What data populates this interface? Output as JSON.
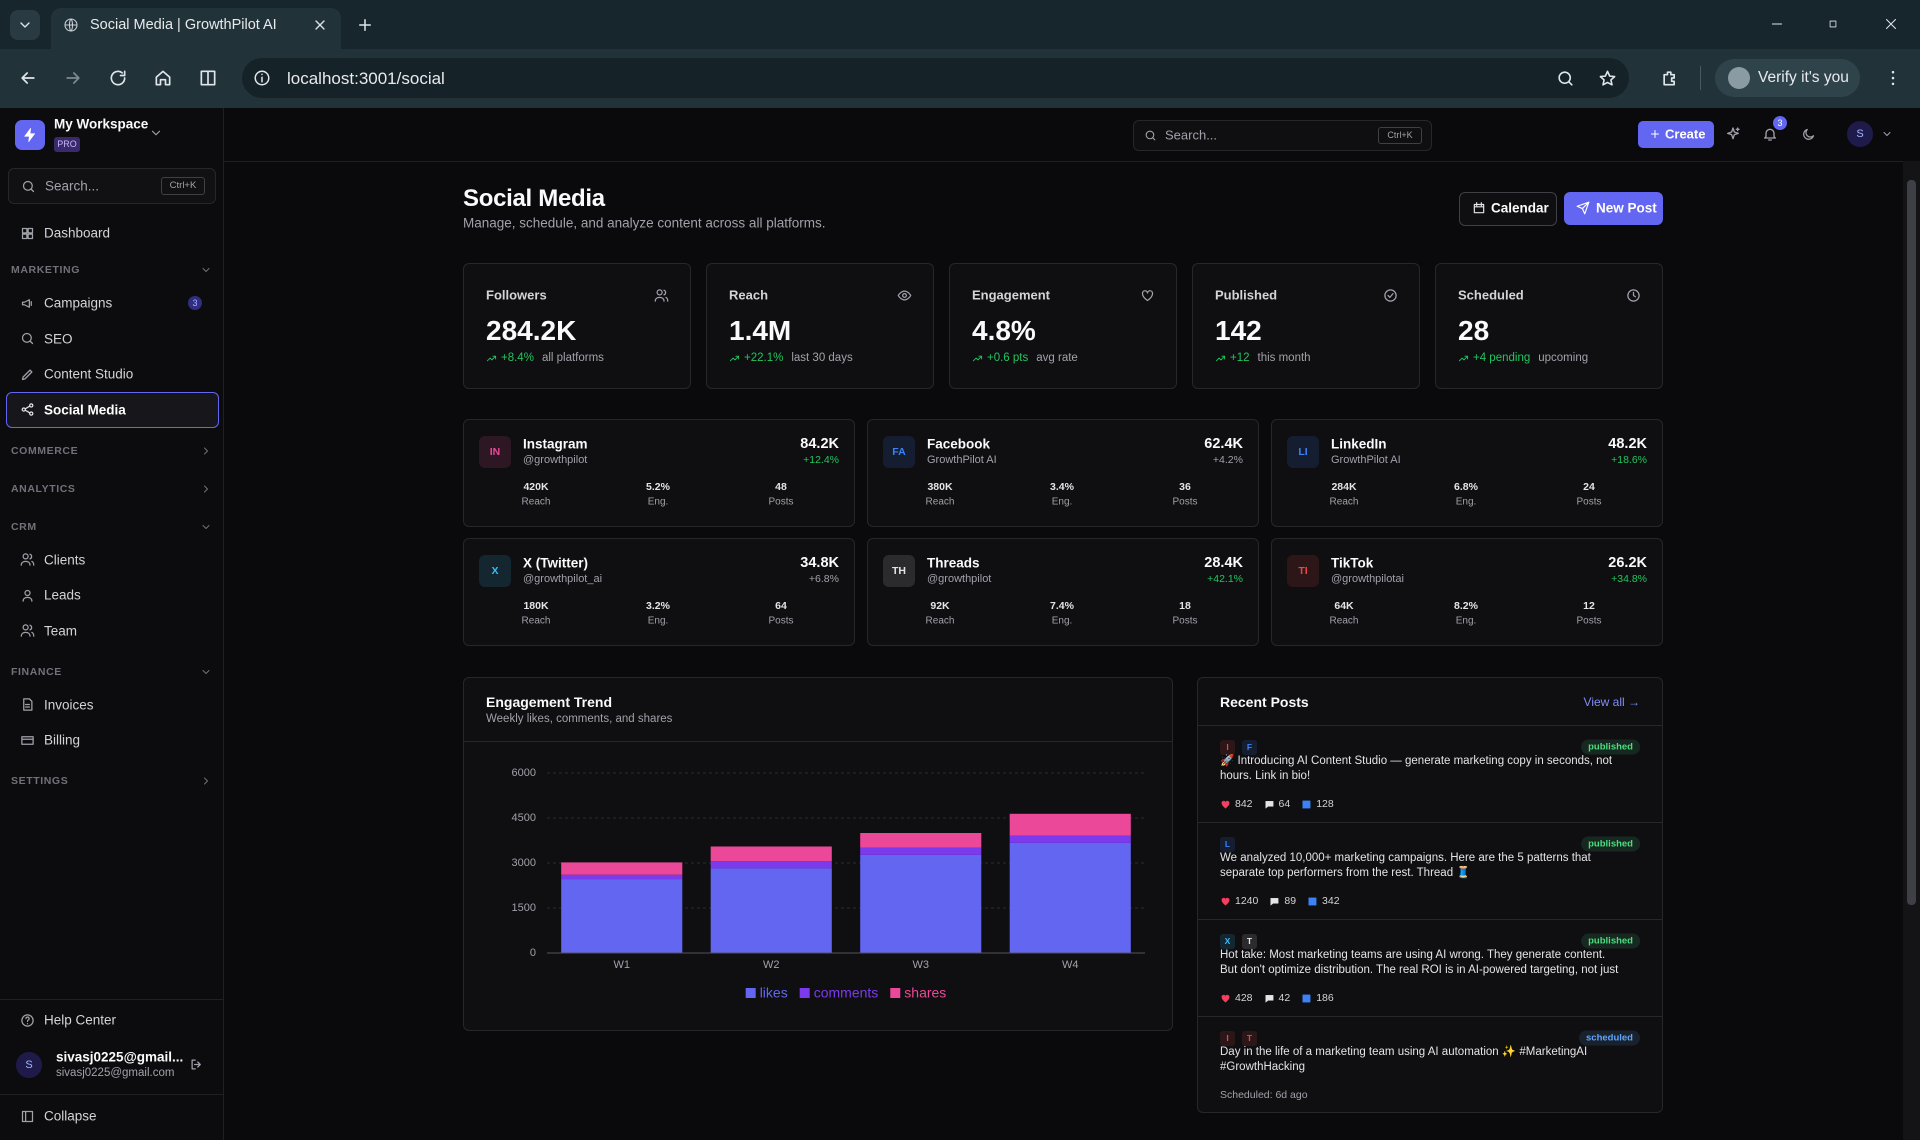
{
  "browser": {
    "tab_title": "Social Media | GrowthPilot AI",
    "url": "localhost:3001/social",
    "profile_button": "Verify it's you"
  },
  "sidebar": {
    "workspace": "My Workspace",
    "plan": "PRO",
    "search": "Search...",
    "shortcut": "Ctrl+K",
    "dashboard": "Dashboard",
    "sections": [
      {
        "title": "MARKETING",
        "items": [
          {
            "label": "Campaigns",
            "badge": 3
          },
          {
            "label": "SEO"
          },
          {
            "label": "Content Studio"
          },
          {
            "label": "Social Media",
            "active": true
          }
        ]
      },
      {
        "title": "COMMERCE"
      },
      {
        "title": "ANALYTICS"
      },
      {
        "title": "CRM",
        "items": [
          {
            "label": "Clients"
          },
          {
            "label": "Leads"
          },
          {
            "label": "Team"
          }
        ]
      },
      {
        "title": "FINANCE",
        "items": [
          {
            "label": "Invoices"
          },
          {
            "label": "Billing"
          }
        ]
      },
      {
        "title": "SETTINGS"
      }
    ],
    "help": "Help Center",
    "user_name": "sivasj0225@gmail...",
    "user_email": "sivasj0225@gmail.com",
    "avatar": "S",
    "collapse": "Collapse"
  },
  "header": {
    "search": "Search...",
    "shortcut": "Ctrl+K",
    "create": "Create",
    "notifications": 3,
    "avatar": "S"
  },
  "page": {
    "title": "Social Media",
    "subtitle": "Manage, schedule, and analyze content across all platforms.",
    "calendar": "Calendar",
    "new_post": "New Post"
  },
  "kpis": [
    {
      "label": "Followers",
      "value": "284.2K",
      "change": "+8.4%",
      "note": "all platforms"
    },
    {
      "label": "Reach",
      "value": "1.4M",
      "change": "+22.1%",
      "note": "last 30 days"
    },
    {
      "label": "Engagement",
      "value": "4.8%",
      "change": "+0.6 pts",
      "note": "avg rate"
    },
    {
      "label": "Published",
      "value": 142,
      "change": "+12",
      "note": "this month"
    },
    {
      "label": "Scheduled",
      "value": 28,
      "change": "+4 pending",
      "note": "upcoming"
    }
  ],
  "platforms": {
    "stat_labels": [
      "Reach",
      "Eng.",
      "Posts"
    ],
    "items": [
      {
        "badge": "IN",
        "name": "Instagram",
        "handle": "@growthpilot",
        "followers": "84.2K",
        "change": "+12.4%",
        "stats": [
          "420K",
          "5.2%",
          48
        ],
        "accent": "#ec4899",
        "change_color": "#22c55e"
      },
      {
        "badge": "FA",
        "name": "Facebook",
        "handle": "GrowthPilot AI",
        "followers": "62.4K",
        "change": "+4.2%",
        "stats": [
          "380K",
          "3.4%",
          36
        ],
        "accent": "#3b82f6",
        "change_color": "#a1a1aa"
      },
      {
        "badge": "LI",
        "name": "LinkedIn",
        "handle": "GrowthPilot AI",
        "followers": "48.2K",
        "change": "+18.6%",
        "stats": [
          "284K",
          "6.8%",
          24
        ],
        "accent": "#3b82f6",
        "change_color": "#22c55e"
      },
      {
        "badge": "X",
        "name": "X (Twitter)",
        "handle": "@growthpilot_ai",
        "followers": "34.8K",
        "change": "+6.8%",
        "stats": [
          "180K",
          "3.2%",
          64
        ],
        "accent": "#38bdf8",
        "change_color": "#a1a1aa"
      },
      {
        "badge": "TH",
        "name": "Threads",
        "handle": "@growthpilot",
        "followers": "28.4K",
        "change": "+42.1%",
        "stats": [
          "92K",
          "7.4%",
          18
        ],
        "accent": "#e4e4e7",
        "change_color": "#22c55e"
      },
      {
        "badge": "TI",
        "name": "TikTok",
        "handle": "@growthpilotai",
        "followers": "26.2K",
        "change": "+34.8%",
        "stats": [
          "64K",
          "8.2%",
          12
        ],
        "accent": "#ef4444",
        "change_color": "#22c55e"
      }
    ]
  },
  "chart_data": {
    "type": "bar",
    "stacked": true,
    "title": "Engagement Trend",
    "subtitle": "Weekly likes, comments, and shares",
    "categories": [
      "W1",
      "W2",
      "W3",
      "W4"
    ],
    "series": [
      {
        "name": "likes",
        "color": "#6366f1",
        "values": [
          2450,
          2820,
          3270,
          3670
        ]
      },
      {
        "name": "comments",
        "color": "#7c3aed",
        "values": [
          160,
          240,
          240,
          240
        ]
      },
      {
        "name": "shares",
        "color": "#ec4899",
        "values": [
          410,
          490,
          490,
          730
        ]
      }
    ],
    "ylim": [
      0,
      6000
    ],
    "yticks": [
      0,
      1500,
      3000,
      4500,
      6000
    ],
    "grid": true,
    "legend": "bottom"
  },
  "recent_posts": {
    "title": "Recent Posts",
    "view_all": "View all →",
    "items": [
      {
        "platforms": [
          {
            "label": "I",
            "color": "#ef4444"
          },
          {
            "label": "F",
            "color": "#3b82f6"
          }
        ],
        "status": "published",
        "status_color": "#4ade80",
        "text": "🚀 Introducing AI Content Studio — generate marketing copy in seconds, not hours. Link in bio!",
        "likes": 842,
        "comments": 64,
        "shares": 128
      },
      {
        "platforms": [
          {
            "label": "L",
            "color": "#3b82f6"
          }
        ],
        "status": "published",
        "status_color": "#4ade80",
        "text": "We analyzed 10,000+ marketing campaigns. Here are the 5 patterns that separate top performers from the rest. Thread 🧵",
        "likes": 1240,
        "comments": 89,
        "shares": 342
      },
      {
        "platforms": [
          {
            "label": "X",
            "color": "#38bdf8"
          },
          {
            "label": "T",
            "color": "#e4e4e7"
          }
        ],
        "status": "published",
        "status_color": "#4ade80",
        "text": "Hot take: Most marketing teams are using AI wrong. They generate content. But don't optimize distribution. The real ROI is in AI-powered targeting, not just AI-...",
        "likes": 428,
        "comments": 42,
        "shares": 186
      },
      {
        "platforms": [
          {
            "label": "I",
            "color": "#ef4444"
          },
          {
            "label": "T",
            "color": "#ef4444"
          }
        ],
        "status": "scheduled",
        "status_color": "#60a5fa",
        "text": "Day in the life of a marketing team using AI automation ✨ #MarketingAI #GrowthHacking",
        "scheduled": "Scheduled: 6d ago"
      }
    ]
  }
}
